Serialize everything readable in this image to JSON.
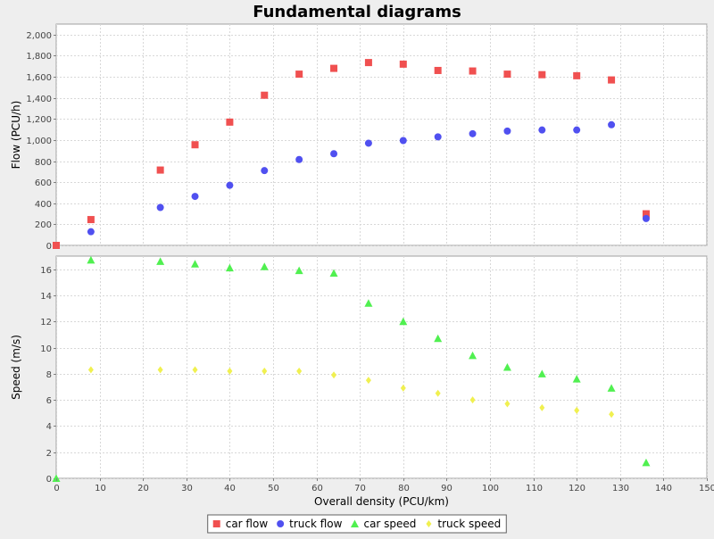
{
  "chart_data": {
    "type": "scatter",
    "title": "Fundamental diagrams",
    "xlabel": "Overall density (PCU/km)",
    "x_ticks": [
      0,
      10,
      20,
      30,
      40,
      50,
      60,
      70,
      80,
      90,
      100,
      110,
      120,
      130,
      140,
      150
    ],
    "xlim": [
      0,
      150
    ],
    "grid": true,
    "legend_position": "bottom",
    "subplots": [
      {
        "name": "flow",
        "ylabel": "Flow (PCU/h)",
        "ylim": [
          0,
          2100
        ],
        "y_ticks": [
          0,
          200,
          400,
          600,
          800,
          1000,
          1200,
          1400,
          1600,
          1800,
          2000
        ],
        "y_tick_labels": [
          "0",
          "200",
          "400",
          "600",
          "800",
          "1,000",
          "1,200",
          "1,400",
          "1,600",
          "1,800",
          "2,000"
        ],
        "series": [
          {
            "name": "car flow",
            "marker": "square",
            "color": "#f05050",
            "x": [
              0,
              8,
              24,
              32,
              40,
              48,
              56,
              64,
              72,
              80,
              88,
              96,
              104,
              112,
              120,
              128,
              136
            ],
            "y": [
              0,
              245,
              715,
              955,
              1170,
              1425,
              1625,
              1680,
              1735,
              1720,
              1660,
              1655,
              1625,
              1620,
              1610,
              1570,
              300
            ]
          },
          {
            "name": "truck flow",
            "marker": "circle",
            "color": "#5050f0",
            "x": [
              8,
              24,
              32,
              40,
              48,
              56,
              64,
              72,
              80,
              88,
              96,
              104,
              112,
              120,
              128,
              136
            ],
            "y": [
              130,
              360,
              465,
              570,
              710,
              815,
              870,
              970,
              995,
              1030,
              1060,
              1085,
              1095,
              1095,
              1145,
              255
            ]
          }
        ]
      },
      {
        "name": "speed",
        "ylabel": "Speed (m/s)",
        "ylim": [
          0,
          17
        ],
        "y_ticks": [
          0,
          2,
          4,
          6,
          8,
          10,
          12,
          14,
          16
        ],
        "y_tick_labels": [
          "0",
          "2",
          "4",
          "6",
          "8",
          "10",
          "12",
          "14",
          "16"
        ],
        "series": [
          {
            "name": "car speed",
            "marker": "triangle",
            "color": "#50f050",
            "x": [
              0,
              8,
              24,
              32,
              40,
              48,
              56,
              64,
              72,
              80,
              88,
              96,
              104,
              112,
              120,
              128,
              136
            ],
            "y": [
              0,
              16.7,
              16.6,
              16.4,
              16.1,
              16.2,
              15.9,
              15.7,
              13.4,
              12.0,
              10.7,
              9.4,
              8.5,
              8.0,
              7.6,
              6.9,
              1.2
            ]
          },
          {
            "name": "truck speed",
            "marker": "diamond",
            "color": "#f0f050",
            "x": [
              8,
              24,
              32,
              40,
              48,
              56,
              64,
              72,
              80,
              88,
              96,
              104,
              112,
              120,
              128
            ],
            "y": [
              8.3,
              8.3,
              8.3,
              8.2,
              8.2,
              8.2,
              7.9,
              7.5,
              6.9,
              6.5,
              6.0,
              5.7,
              5.4,
              5.2,
              4.9
            ]
          }
        ]
      }
    ]
  }
}
